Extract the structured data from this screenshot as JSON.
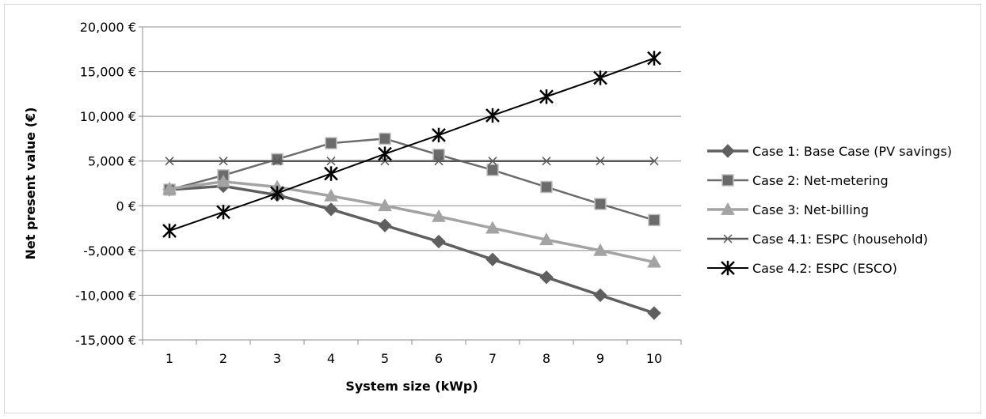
{
  "chart_data": {
    "type": "line",
    "title": "",
    "xlabel": "System size (kWp)",
    "ylabel": "Net present value (€)",
    "categories": [
      "1",
      "2",
      "3",
      "4",
      "5",
      "6",
      "7",
      "8",
      "9",
      "10"
    ],
    "ylim": [
      -15000,
      20000
    ],
    "yticks": [
      -15000,
      -10000,
      -5000,
      0,
      5000,
      10000,
      15000,
      20000
    ],
    "ytick_labels": [
      "-15,000 €",
      "-10,000 €",
      "-5,000 €",
      "0 €",
      "5,000 €",
      "10,000 €",
      "15,000 €",
      "20,000 €"
    ],
    "grid": "horizontal",
    "legend_position": "right",
    "series": [
      {
        "name": "Case 1: Base Case (PV savings)",
        "marker": "diamond",
        "color": "#5f5f5f",
        "values": [
          1800,
          2200,
          1200,
          -400,
          -2200,
          -4000,
          -6000,
          -8000,
          -10000,
          -12000
        ]
      },
      {
        "name": "Case 2: Net-metering",
        "marker": "square",
        "color": "#6b6b6b",
        "values": [
          1800,
          3400,
          5200,
          7000,
          7500,
          5700,
          4000,
          2100,
          200,
          -1600
        ]
      },
      {
        "name": "Case 3: Net-billing",
        "marker": "triangle",
        "color": "#a3a3a3",
        "values": [
          1900,
          2700,
          2100,
          1100,
          0,
          -1200,
          -2500,
          -3800,
          -5000,
          -6300
        ]
      },
      {
        "name": "Case 4.1: ESPC (household)",
        "marker": "x",
        "color": "#595959",
        "values": [
          5000,
          5000,
          5000,
          5000,
          5000,
          5000,
          5000,
          5000,
          5000,
          5000
        ]
      },
      {
        "name": "Case 4.2: ESPC (ESCO)",
        "marker": "star",
        "color": "#000000",
        "values": [
          -2800,
          -700,
          1400,
          3600,
          5800,
          7900,
          10100,
          12200,
          14300,
          16500
        ]
      }
    ]
  }
}
